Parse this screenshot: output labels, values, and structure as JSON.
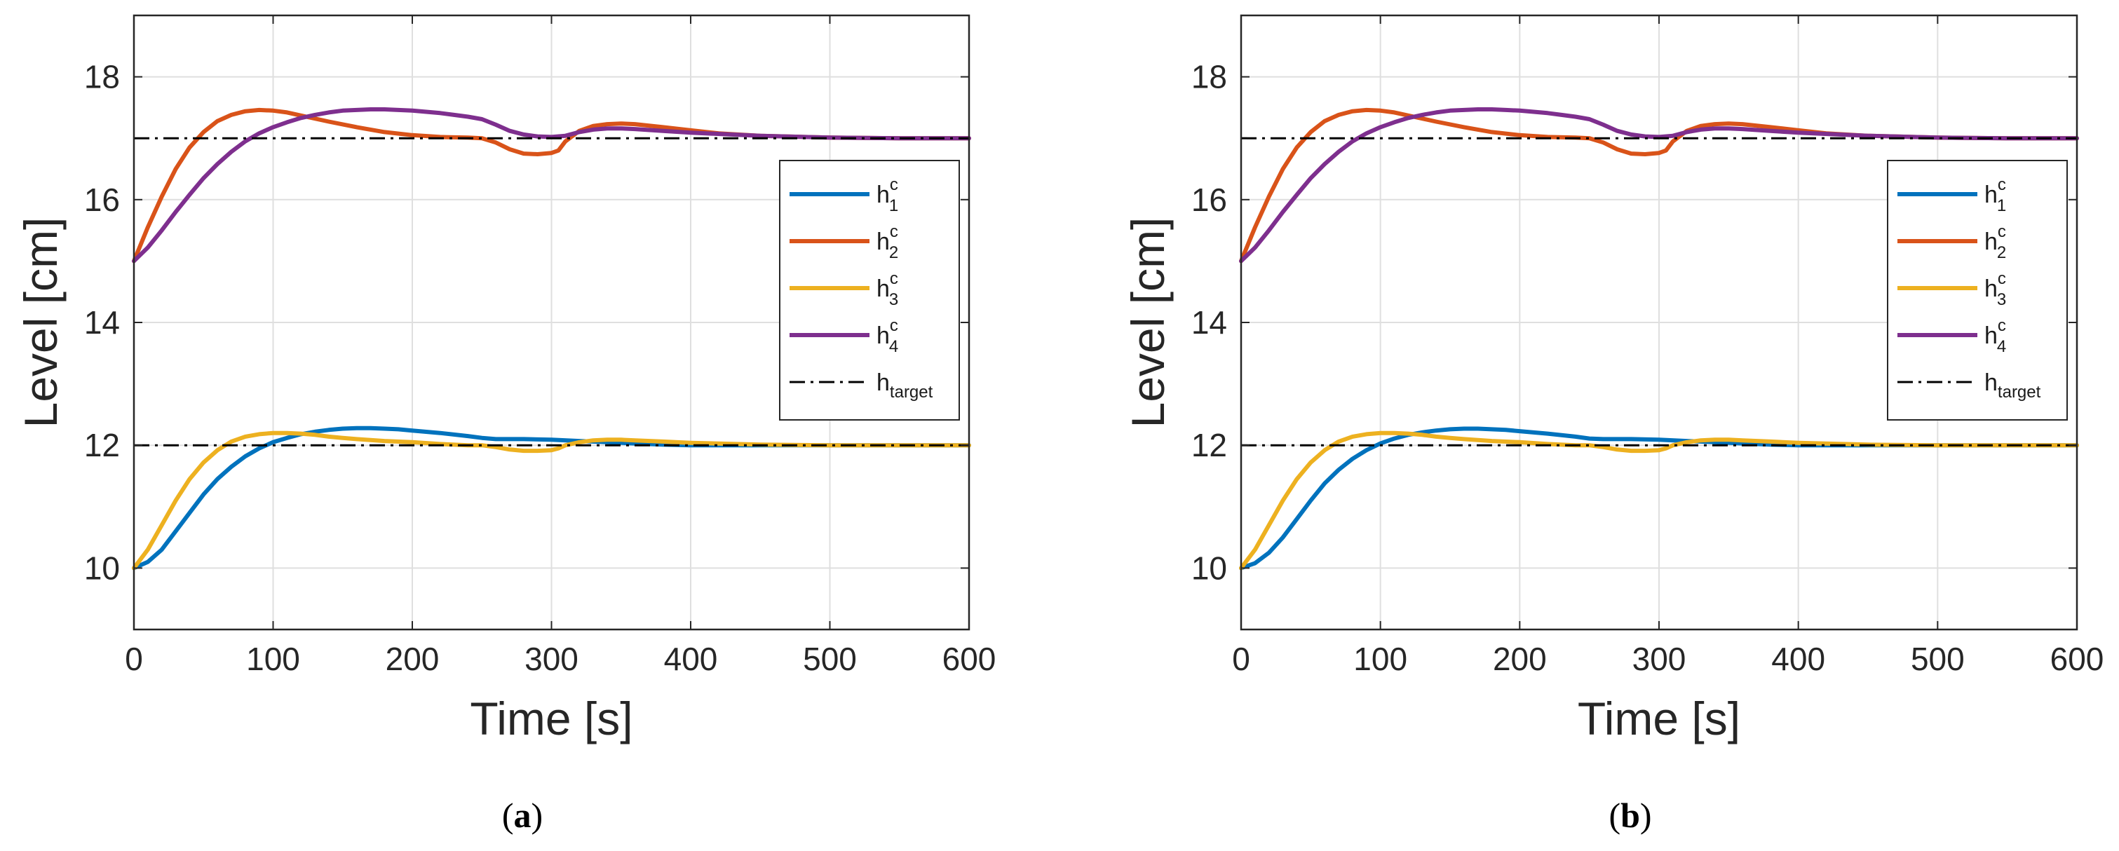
{
  "chart_data": [
    {
      "type": "line",
      "panel": "a",
      "caption_letter": "a",
      "xlabel": "Time [s]",
      "ylabel": "Level [cm]",
      "xlim": [
        0,
        600
      ],
      "ylim": [
        9,
        19
      ],
      "xticks": [
        0,
        100,
        200,
        300,
        400,
        500,
        600
      ],
      "yticks": [
        10,
        12,
        14,
        16,
        18
      ],
      "grid": true,
      "legend_position": "right",
      "series": [
        {
          "name": "h",
          "sup": "c",
          "sub": "1",
          "color": "#0072BD",
          "style": "solid",
          "x": [
            0,
            10,
            20,
            30,
            40,
            50,
            60,
            70,
            80,
            90,
            100,
            110,
            120,
            130,
            140,
            150,
            160,
            170,
            180,
            190,
            200,
            220,
            240,
            250,
            260,
            280,
            300,
            320,
            340,
            360,
            380,
            400,
            420,
            440,
            460,
            480,
            500,
            550,
            600
          ],
          "y": [
            10,
            10.1,
            10.3,
            10.6,
            10.9,
            11.2,
            11.45,
            11.65,
            11.82,
            11.95,
            12.05,
            12.12,
            12.18,
            12.22,
            12.25,
            12.27,
            12.28,
            12.28,
            12.27,
            12.26,
            12.24,
            12.2,
            12.15,
            12.12,
            12.1,
            12.1,
            12.09,
            12.07,
            12.05,
            12.03,
            12.01,
            12,
            12,
            12,
            12,
            12,
            12,
            12,
            12
          ]
        },
        {
          "name": "h",
          "sup": "c",
          "sub": "2",
          "color": "#D95319",
          "style": "solid",
          "x": [
            0,
            10,
            20,
            30,
            40,
            50,
            60,
            70,
            80,
            90,
            100,
            110,
            120,
            140,
            160,
            180,
            200,
            220,
            240,
            250,
            260,
            270,
            280,
            290,
            300,
            305,
            310,
            320,
            330,
            340,
            350,
            360,
            380,
            400,
            420,
            450,
            500,
            550,
            600
          ],
          "y": [
            15,
            15.55,
            16.05,
            16.5,
            16.85,
            17.1,
            17.28,
            17.38,
            17.44,
            17.46,
            17.45,
            17.42,
            17.37,
            17.27,
            17.18,
            17.1,
            17.05,
            17.02,
            17.01,
            17,
            16.93,
            16.82,
            16.75,
            16.74,
            16.76,
            16.8,
            16.95,
            17.12,
            17.2,
            17.23,
            17.24,
            17.23,
            17.18,
            17.13,
            17.08,
            17.04,
            17.01,
            17,
            17
          ]
        },
        {
          "name": "h",
          "sup": "c",
          "sub": "3",
          "color": "#EDB120",
          "style": "solid",
          "x": [
            0,
            10,
            20,
            30,
            40,
            50,
            60,
            70,
            80,
            90,
            100,
            110,
            120,
            130,
            140,
            150,
            160,
            180,
            200,
            220,
            240,
            250,
            260,
            270,
            280,
            290,
            300,
            305,
            310,
            320,
            330,
            340,
            350,
            360,
            380,
            400,
            450,
            500,
            600
          ],
          "y": [
            10,
            10.3,
            10.7,
            11.1,
            11.45,
            11.72,
            11.92,
            12.06,
            12.14,
            12.18,
            12.2,
            12.2,
            12.19,
            12.17,
            12.14,
            12.12,
            12.1,
            12.07,
            12.05,
            12.02,
            12,
            12,
            11.97,
            11.93,
            11.91,
            11.91,
            11.92,
            11.95,
            12,
            12.05,
            12.08,
            12.09,
            12.09,
            12.08,
            12.06,
            12.04,
            12.01,
            12,
            12
          ]
        },
        {
          "name": "h",
          "sup": "c",
          "sub": "4",
          "color": "#7E2F8E",
          "style": "solid",
          "x": [
            0,
            10,
            20,
            30,
            40,
            50,
            60,
            70,
            80,
            90,
            100,
            110,
            120,
            130,
            140,
            150,
            160,
            170,
            180,
            190,
            200,
            210,
            220,
            230,
            240,
            250,
            260,
            270,
            280,
            290,
            300,
            310,
            320,
            330,
            340,
            350,
            360,
            380,
            400,
            450,
            500,
            550,
            600
          ],
          "y": [
            15,
            15.22,
            15.5,
            15.8,
            16.08,
            16.35,
            16.58,
            16.78,
            16.95,
            17.08,
            17.18,
            17.26,
            17.33,
            17.38,
            17.42,
            17.45,
            17.46,
            17.47,
            17.47,
            17.46,
            17.45,
            17.43,
            17.41,
            17.38,
            17.35,
            17.31,
            17.22,
            17.12,
            17.06,
            17.03,
            17.02,
            17.04,
            17.1,
            17.14,
            17.16,
            17.16,
            17.15,
            17.12,
            17.09,
            17.04,
            17.01,
            17,
            17
          ]
        },
        {
          "name": "h",
          "sup": "",
          "sub": "target",
          "color": "#000000",
          "style": "dashdot",
          "segments": [
            {
              "x": [
                0,
                600
              ],
              "y": [
                17,
                17
              ]
            },
            {
              "x": [
                0,
                600
              ],
              "y": [
                12,
                12
              ]
            }
          ]
        }
      ]
    },
    {
      "type": "line",
      "panel": "b",
      "caption_letter": "b",
      "xlabel": "Time [s]",
      "ylabel": "Level [cm]",
      "xlim": [
        0,
        600
      ],
      "ylim": [
        9,
        19
      ],
      "xticks": [
        0,
        100,
        200,
        300,
        400,
        500,
        600
      ],
      "yticks": [
        10,
        12,
        14,
        16,
        18
      ],
      "grid": true,
      "legend_position": "right",
      "series": [
        {
          "name": "h",
          "sup": "c",
          "sub": "1",
          "color": "#0072BD",
          "style": "solid",
          "x": [
            0,
            10,
            20,
            30,
            40,
            50,
            60,
            70,
            80,
            90,
            100,
            110,
            120,
            130,
            140,
            150,
            160,
            170,
            180,
            190,
            200,
            220,
            240,
            250,
            260,
            280,
            300,
            320,
            340,
            360,
            380,
            400,
            420,
            440,
            460,
            480,
            500,
            550,
            600
          ],
          "y": [
            10,
            10.08,
            10.25,
            10.5,
            10.8,
            11.1,
            11.38,
            11.6,
            11.78,
            11.92,
            12.03,
            12.11,
            12.17,
            12.21,
            12.24,
            12.26,
            12.27,
            12.27,
            12.26,
            12.25,
            12.23,
            12.19,
            12.14,
            12.11,
            12.1,
            12.1,
            12.09,
            12.07,
            12.05,
            12.03,
            12.01,
            12,
            12,
            12,
            12,
            12,
            12,
            12,
            12
          ]
        },
        {
          "name": "h",
          "sup": "c",
          "sub": "2",
          "color": "#D95319",
          "style": "solid",
          "x": [
            0,
            10,
            20,
            30,
            40,
            50,
            60,
            70,
            80,
            90,
            100,
            110,
            120,
            140,
            160,
            180,
            200,
            220,
            240,
            250,
            260,
            270,
            280,
            290,
            300,
            305,
            310,
            320,
            330,
            340,
            350,
            360,
            380,
            400,
            420,
            450,
            500,
            550,
            600
          ],
          "y": [
            15,
            15.55,
            16.05,
            16.5,
            16.85,
            17.1,
            17.28,
            17.38,
            17.44,
            17.46,
            17.45,
            17.42,
            17.37,
            17.27,
            17.18,
            17.1,
            17.05,
            17.02,
            17.01,
            17,
            16.93,
            16.82,
            16.75,
            16.74,
            16.76,
            16.8,
            16.95,
            17.12,
            17.2,
            17.23,
            17.24,
            17.23,
            17.18,
            17.13,
            17.08,
            17.04,
            17.01,
            17,
            17
          ]
        },
        {
          "name": "h",
          "sup": "c",
          "sub": "3",
          "color": "#EDB120",
          "style": "solid",
          "x": [
            0,
            10,
            20,
            30,
            40,
            50,
            60,
            70,
            80,
            90,
            100,
            110,
            120,
            130,
            140,
            150,
            160,
            180,
            200,
            220,
            240,
            250,
            260,
            270,
            280,
            290,
            300,
            305,
            310,
            320,
            330,
            340,
            350,
            360,
            380,
            400,
            450,
            500,
            600
          ],
          "y": [
            10,
            10.3,
            10.7,
            11.1,
            11.45,
            11.72,
            11.92,
            12.06,
            12.14,
            12.18,
            12.2,
            12.2,
            12.19,
            12.17,
            12.14,
            12.12,
            12.1,
            12.07,
            12.05,
            12.02,
            12,
            12,
            11.97,
            11.93,
            11.91,
            11.91,
            11.92,
            11.95,
            12,
            12.05,
            12.08,
            12.09,
            12.09,
            12.08,
            12.06,
            12.04,
            12.01,
            12,
            12
          ]
        },
        {
          "name": "h",
          "sup": "c",
          "sub": "4",
          "color": "#7E2F8E",
          "style": "solid",
          "x": [
            0,
            10,
            20,
            30,
            40,
            50,
            60,
            70,
            80,
            90,
            100,
            110,
            120,
            130,
            140,
            150,
            160,
            170,
            180,
            190,
            200,
            210,
            220,
            230,
            240,
            250,
            260,
            270,
            280,
            290,
            300,
            310,
            320,
            330,
            340,
            350,
            360,
            380,
            400,
            450,
            500,
            550,
            600
          ],
          "y": [
            15,
            15.22,
            15.5,
            15.8,
            16.08,
            16.35,
            16.58,
            16.78,
            16.95,
            17.08,
            17.18,
            17.26,
            17.33,
            17.38,
            17.42,
            17.45,
            17.46,
            17.47,
            17.47,
            17.46,
            17.45,
            17.43,
            17.41,
            17.38,
            17.35,
            17.31,
            17.22,
            17.12,
            17.06,
            17.03,
            17.02,
            17.04,
            17.1,
            17.14,
            17.16,
            17.16,
            17.15,
            17.12,
            17.09,
            17.04,
            17.01,
            17,
            17
          ]
        },
        {
          "name": "h",
          "sup": "",
          "sub": "target",
          "color": "#000000",
          "style": "dashdot",
          "segments": [
            {
              "x": [
                0,
                600
              ],
              "y": [
                17,
                17
              ]
            },
            {
              "x": [
                0,
                600
              ],
              "y": [
                12,
                12
              ]
            }
          ]
        }
      ]
    }
  ]
}
